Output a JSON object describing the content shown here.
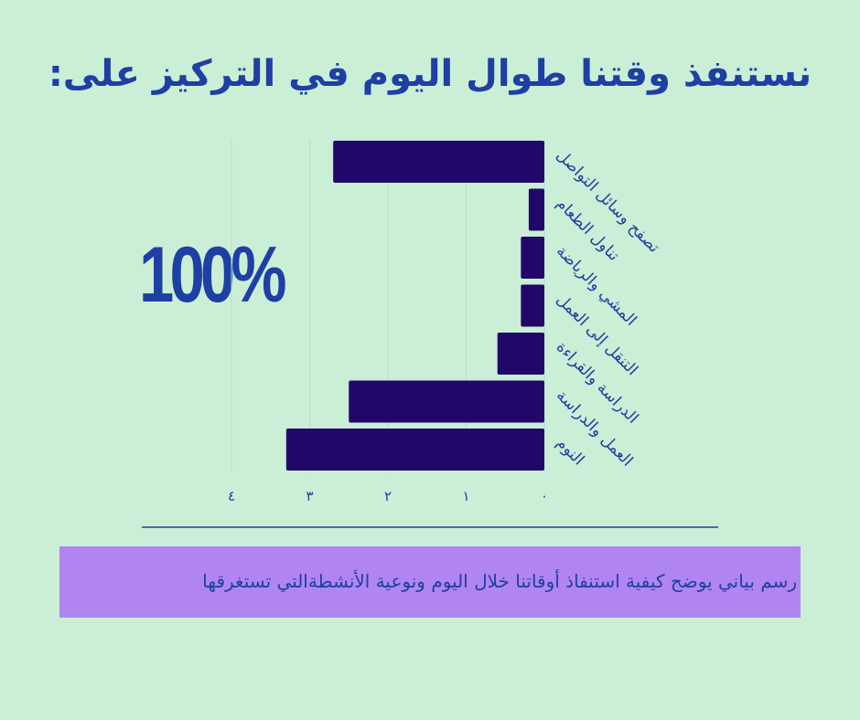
{
  "title": "نستنفذ وقتنا طوال اليوم في التركيز على:",
  "highlight": "100%",
  "caption": "رسم بياني يوضح كيفية استنفاذ أوقاتنا خلال اليوم ونوعية الأنشطةالتي تستغرقها",
  "colors": {
    "background": "#cbeed6",
    "bar": "#22076b",
    "text": "#1e3fa3",
    "caption_band": "#b085f1"
  },
  "chart_data": {
    "type": "bar",
    "orientation": "horizontal",
    "direction": "right-to-left",
    "categories": [
      "تصفح وسائل التواصل",
      "تناول الطعام",
      "المشي والرياضة",
      "التنقل إلى العمل",
      "الدراسة والقراءة",
      "العمل والدراسة",
      "النوم"
    ],
    "values": [
      2.7,
      0.2,
      0.3,
      0.3,
      0.6,
      2.5,
      3.3
    ],
    "xticks": [
      "٠",
      "١",
      "٢",
      "٣",
      "٤"
    ],
    "xlim": [
      0,
      4
    ],
    "grid": true
  }
}
